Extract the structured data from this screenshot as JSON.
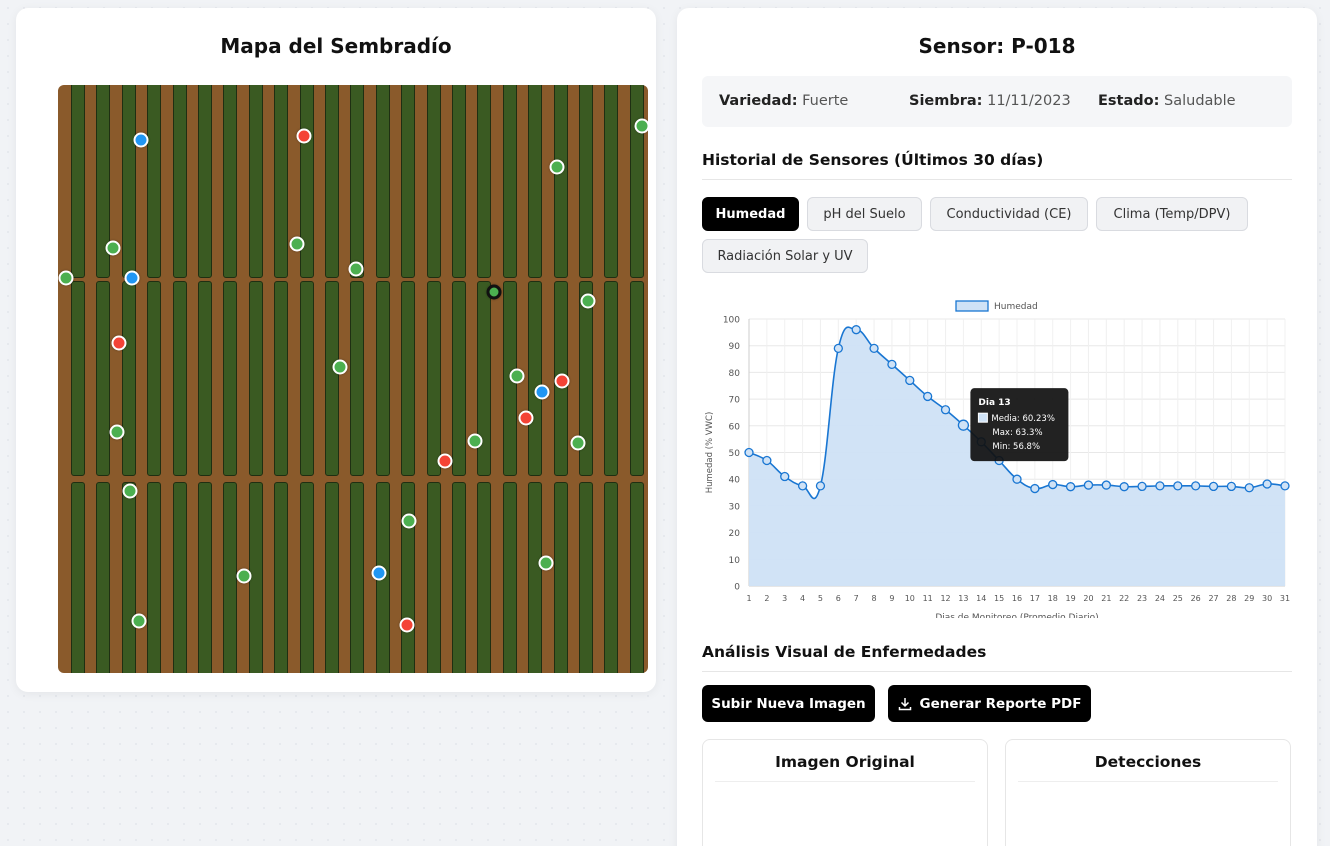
{
  "map": {
    "title": "Mapa del Sembradío",
    "colors": {
      "healthy": "#4caf50",
      "alert": "#f44336",
      "info": "#2196f3",
      "soil": "#8a5a2b",
      "bed": "#3a5a22"
    },
    "plants": [
      {
        "status": "info"
      },
      {
        "status": "alert"
      },
      {
        "status": "healthy"
      },
      {
        "status": "healthy"
      },
      {
        "status": "healthy"
      },
      {
        "status": "healthy"
      },
      {
        "status": "healthy"
      },
      {
        "status": "info"
      },
      {
        "status": "healthy"
      },
      {
        "status": "healthy",
        "selected": true
      },
      {
        "status": "healthy"
      },
      {
        "status": "alert"
      },
      {
        "status": "healthy"
      },
      {
        "status": "healthy"
      },
      {
        "status": "info"
      },
      {
        "status": "alert"
      },
      {
        "status": "alert"
      },
      {
        "status": "healthy"
      },
      {
        "status": "healthy"
      },
      {
        "status": "healthy"
      },
      {
        "status": "alert"
      },
      {
        "status": "healthy"
      },
      {
        "status": "healthy"
      },
      {
        "status": "healthy"
      },
      {
        "status": "healthy"
      },
      {
        "status": "info"
      },
      {
        "status": "healthy"
      },
      {
        "status": "alert"
      }
    ]
  },
  "sensor": {
    "title": "Sensor: P-018",
    "variety_label": "Variedad:",
    "variety_value": "Fuerte",
    "sowing_label": "Siembra:",
    "sowing_value": "11/11/2023",
    "status_label": "Estado:",
    "status_value": "Saludable"
  },
  "history": {
    "title": "Historial de Sensores (Últimos 30 días)",
    "tabs": [
      "Humedad",
      "pH del Suelo",
      "Conductividad (CE)",
      "Clima (Temp/DPV)",
      "Radiación Solar y UV"
    ],
    "active_tab": "Humedad"
  },
  "chart_data": {
    "type": "area",
    "legend": "Humedad",
    "legend_position": "top",
    "xlabel": "Dias de Monitoreo (Promedio Diario)",
    "ylabel": "Humedad (% VWC)",
    "ylim": [
      0,
      100
    ],
    "yticks": [
      0,
      10,
      20,
      30,
      40,
      50,
      60,
      70,
      80,
      90,
      100
    ],
    "grid": true,
    "x": [
      1,
      2,
      3,
      4,
      5,
      6,
      7,
      8,
      9,
      10,
      11,
      12,
      13,
      14,
      15,
      16,
      17,
      18,
      19,
      20,
      21,
      22,
      23,
      24,
      25,
      26,
      27,
      28,
      29,
      30,
      31
    ],
    "values": [
      50,
      47,
      41,
      37.5,
      37.5,
      89,
      96,
      89,
      83,
      77,
      71,
      66,
      60.23,
      54,
      47,
      40,
      36.5,
      38,
      37.2,
      37.8,
      37.8,
      37.2,
      37.3,
      37.5,
      37.5,
      37.5,
      37.3,
      37.3,
      36.8,
      38.2,
      37.5
    ],
    "line_color": "#1976d2",
    "fill_color": "#cfe2f6",
    "tooltip": {
      "title": "Dia 13",
      "lines": [
        "Media: 60.23%",
        "Max: 63.3%",
        "Min: 56.8%"
      ],
      "index": 12
    }
  },
  "disease": {
    "title": "Análisis Visual de Enfermedades",
    "upload_label": "Subir Nueva Imagen",
    "report_label": "Generar Reporte PDF",
    "original_title": "Imagen Original",
    "detections_title": "Detecciones"
  }
}
